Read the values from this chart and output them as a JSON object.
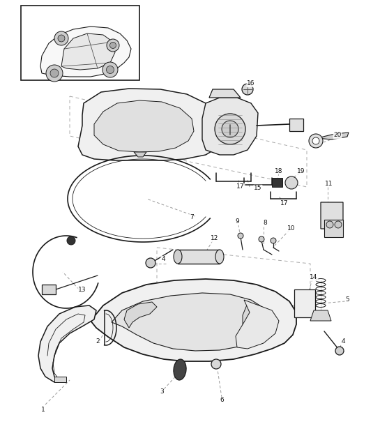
{
  "bg_color": "#ffffff",
  "line_color": "#1a1a1a",
  "fig_width": 5.45,
  "fig_height": 6.28,
  "dpi": 100
}
